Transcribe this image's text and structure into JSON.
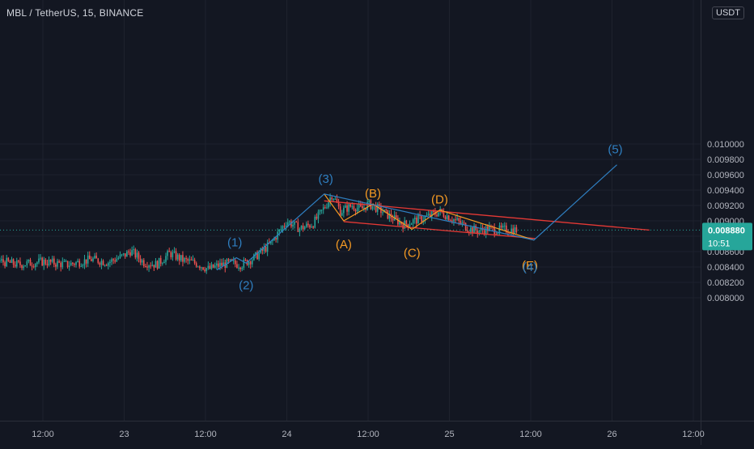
{
  "header": {
    "title": "MBL / TetherUS, 15, BINANCE",
    "currency": "USDT"
  },
  "price_tag": {
    "price": "0.008880",
    "countdown": "10:51",
    "color": "#26a69a"
  },
  "colors": {
    "background": "#131722",
    "grid": "#1e222d",
    "axis_text": "#b2b5be",
    "up": "#26a69a",
    "down": "#ef5350",
    "wave_blue": "#2f7fc1",
    "wave_orange": "#f59a23",
    "channel_red": "#e53935"
  },
  "chart_data": {
    "type": "candlestick",
    "title": "MBL / TetherUS, 15, BINANCE",
    "ylim": [
      0.0078,
      0.0102
    ],
    "xlim_days": [
      21.6,
      26.98
    ],
    "y_ticks": [
      {
        "value": 0.008,
        "label": "0.008000"
      },
      {
        "value": 0.0082,
        "label": "0.008200"
      },
      {
        "value": 0.0084,
        "label": "0.008400"
      },
      {
        "value": 0.0086,
        "label": "0.008600"
      },
      {
        "value": 0.0088,
        "label": "0.008800"
      },
      {
        "value": 0.009,
        "label": "0.009000"
      },
      {
        "value": 0.0092,
        "label": "0.009200"
      },
      {
        "value": 0.0094,
        "label": "0.009400"
      },
      {
        "value": 0.0096,
        "label": "0.009600"
      },
      {
        "value": 0.0098,
        "label": "0.009800"
      },
      {
        "value": 0.01,
        "label": "0.010000"
      }
    ],
    "x_ticks": [
      {
        "day": 22.5,
        "label": "12:00"
      },
      {
        "day": 23.0,
        "label": "23"
      },
      {
        "day": 23.5,
        "label": "12:00"
      },
      {
        "day": 24.0,
        "label": "24"
      },
      {
        "day": 24.5,
        "label": "12:00"
      },
      {
        "day": 25.0,
        "label": "25"
      },
      {
        "day": 25.5,
        "label": "12:00"
      },
      {
        "day": 26.0,
        "label": "26"
      },
      {
        "day": 26.5,
        "label": "12:00"
      }
    ],
    "price_line": 0.00888,
    "price_path": [
      [
        21.6,
        0.00845
      ],
      [
        21.75,
        0.00841
      ],
      [
        21.9,
        0.00846
      ],
      [
        22.05,
        0.00842
      ],
      [
        22.2,
        0.00849
      ],
      [
        22.35,
        0.00843
      ],
      [
        22.5,
        0.00847
      ],
      [
        22.65,
        0.00843
      ],
      [
        22.8,
        0.0085
      ],
      [
        22.9,
        0.00846
      ],
      [
        23.0,
        0.00855
      ],
      [
        23.04,
        0.00861
      ],
      [
        23.12,
        0.00846
      ],
      [
        23.2,
        0.00843
      ],
      [
        23.28,
        0.00858
      ],
      [
        23.36,
        0.00849
      ],
      [
        23.44,
        0.00845
      ],
      [
        23.52,
        0.00837
      ],
      [
        23.58,
        0.00842
      ],
      [
        23.65,
        0.00845
      ],
      [
        23.72,
        0.00843
      ],
      [
        23.8,
        0.00852
      ],
      [
        23.9,
        0.0087
      ],
      [
        24.0,
        0.009
      ],
      [
        24.08,
        0.0089
      ],
      [
        24.16,
        0.00896
      ],
      [
        24.24,
        0.0092
      ],
      [
        24.28,
        0.00935
      ],
      [
        24.33,
        0.00912
      ],
      [
        24.4,
        0.0092
      ],
      [
        24.46,
        0.00915
      ],
      [
        24.5,
        0.00922
      ],
      [
        24.56,
        0.00916
      ],
      [
        24.64,
        0.00905
      ],
      [
        24.72,
        0.00895
      ],
      [
        24.78,
        0.009
      ],
      [
        24.86,
        0.00905
      ],
      [
        24.94,
        0.00912
      ],
      [
        25.0,
        0.00905
      ],
      [
        25.06,
        0.00898
      ],
      [
        25.12,
        0.0089
      ],
      [
        25.18,
        0.00887
      ],
      [
        25.24,
        0.0089
      ],
      [
        25.3,
        0.00888
      ],
      [
        25.36,
        0.00889
      ],
      [
        25.42,
        0.00888
      ]
    ],
    "annotations": {
      "elliott_impulse": {
        "color": "#2f7fc1",
        "points": [
          {
            "label": "",
            "day": 23.57,
            "price": 0.00836
          },
          {
            "label": "(1)",
            "day": 23.69,
            "price": 0.00852
          },
          {
            "label": "(2)",
            "day": 23.75,
            "price": 0.00845
          },
          {
            "label": "(3)",
            "day": 24.23,
            "price": 0.00935
          },
          {
            "label": "(4)",
            "day": 25.52,
            "price": 0.00875
          },
          {
            "label": "(5)",
            "day": 26.03,
            "price": 0.00973
          }
        ]
      },
      "correction_abcde": {
        "color": "#f59a23",
        "points": [
          {
            "label": "",
            "day": 24.23,
            "price": 0.00935
          },
          {
            "label": "(A)",
            "day": 24.35,
            "price": 0.009
          },
          {
            "label": "(B)",
            "day": 24.53,
            "price": 0.00922
          },
          {
            "label": "(C)",
            "day": 24.77,
            "price": 0.00889
          },
          {
            "label": "(D)",
            "day": 24.94,
            "price": 0.00914
          },
          {
            "label": "(E)",
            "day": 25.52,
            "price": 0.00875
          }
        ]
      },
      "channel_lines": {
        "color": "#e53935",
        "upper": [
          {
            "day": 24.23,
            "price": 0.00926
          },
          {
            "day": 26.23,
            "price": 0.00888
          }
        ],
        "lower": [
          {
            "day": 24.35,
            "price": 0.00899
          },
          {
            "day": 25.53,
            "price": 0.00877
          }
        ]
      }
    }
  }
}
